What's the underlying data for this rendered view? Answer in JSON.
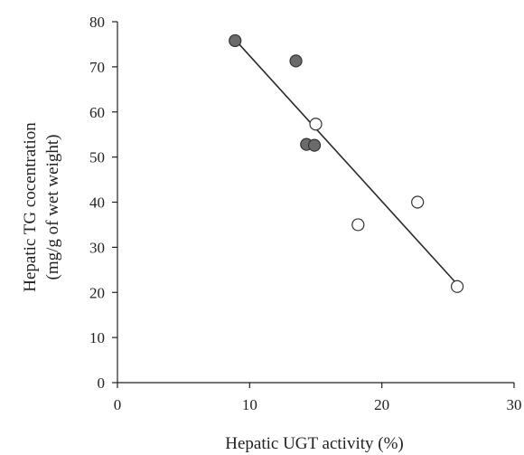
{
  "chart_data": {
    "type": "scatter",
    "title": "",
    "xlabel": "Hepatic UGT activity (%)",
    "ylabel": [
      "Hepatic TG cocentration",
      "(mg/g of wet weight)"
    ],
    "xlim": [
      0,
      30
    ],
    "ylim": [
      0,
      80
    ],
    "xticks": [
      0,
      10,
      20,
      30
    ],
    "yticks": [
      0,
      10,
      20,
      30,
      40,
      50,
      60,
      70,
      80
    ],
    "grid": false,
    "legend": "none",
    "series": [
      {
        "marker": "filled-circle",
        "color": "#6b6b6b",
        "points": [
          {
            "x": 8.9,
            "y": 75.8
          },
          {
            "x": 13.5,
            "y": 71.3
          },
          {
            "x": 14.3,
            "y": 52.8
          },
          {
            "x": 14.9,
            "y": 52.6
          }
        ]
      },
      {
        "marker": "open-circle",
        "color": "#ffffff",
        "points": [
          {
            "x": 15.0,
            "y": 57.3
          },
          {
            "x": 18.2,
            "y": 35.0
          },
          {
            "x": 22.7,
            "y": 40.0
          },
          {
            "x": 25.7,
            "y": 21.3
          }
        ]
      }
    ],
    "trendline": {
      "x": [
        8.9,
        25.7
      ],
      "y": [
        76.0,
        21.8
      ]
    }
  }
}
